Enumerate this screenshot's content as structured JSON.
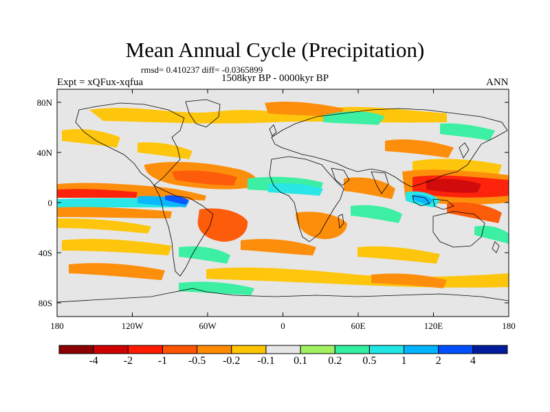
{
  "title": "Mean Annual Cycle (Precipitation)",
  "stats_line": "rmsd= 0.410237 diff= -0.0365899",
  "period": "1508kyr BP - 0000kyr BP",
  "expt_label": "Expt = xQFux-xqfua",
  "season": "ANN",
  "map": {
    "lat_ticks": [
      "80N",
      "40N",
      "0",
      "40S",
      "80S"
    ],
    "lon_ticks": [
      "180",
      "120W",
      "60W",
      "0",
      "60E",
      "120E",
      "180"
    ],
    "background_color": "#e6e6e6"
  },
  "colorbar": {
    "bins": [
      {
        "color": "#8b0000"
      },
      {
        "color": "#d00000"
      },
      {
        "color": "#ff1a00"
      },
      {
        "color": "#ff5500"
      },
      {
        "color": "#ff8a00"
      },
      {
        "color": "#ffc400"
      },
      {
        "color": "#e6e6e6"
      },
      {
        "color": "#a0f060"
      },
      {
        "color": "#33f0a0"
      },
      {
        "color": "#20e6e6"
      },
      {
        "color": "#00b4ff"
      },
      {
        "color": "#0050ff"
      },
      {
        "color": "#001c9c"
      }
    ],
    "labels": [
      "-4",
      "-2",
      "-1",
      "-0.5",
      "-0.2",
      "-0.1",
      "0.1",
      "0.2",
      "0.5",
      "1",
      "2",
      "4"
    ]
  }
}
